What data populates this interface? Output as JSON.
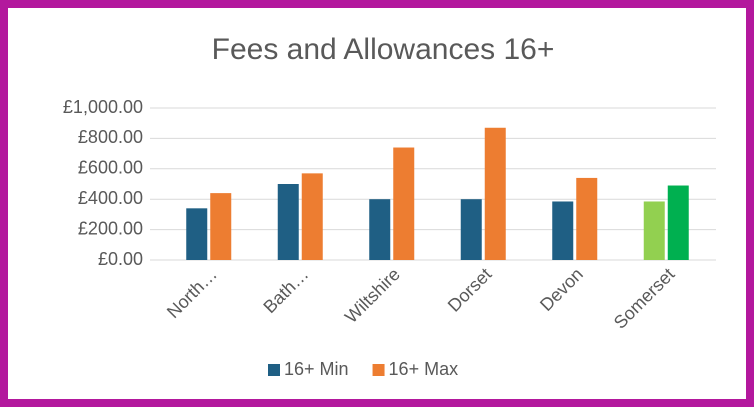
{
  "chart_data": {
    "type": "bar",
    "title": "Fees and Allowances 16+",
    "categories": [
      "North…",
      "Bath…",
      "Wiltshire",
      "Dorset",
      "Devon",
      "Somerset"
    ],
    "series": [
      {
        "name": "16+ Min",
        "color": "#1f5f84",
        "colors": [
          "#1f5f84",
          "#1f5f84",
          "#1f5f84",
          "#1f5f84",
          "#1f5f84",
          "#92d050"
        ],
        "values": [
          340,
          500,
          400,
          400,
          385,
          385
        ]
      },
      {
        "name": "16+ Max",
        "color": "#ed7d31",
        "colors": [
          "#ed7d31",
          "#ed7d31",
          "#ed7d31",
          "#ed7d31",
          "#ed7d31",
          "#00b050"
        ],
        "values": [
          440,
          570,
          740,
          870,
          540,
          490
        ]
      }
    ],
    "ylim": [
      0,
      1000
    ],
    "yticks": [
      {
        "value": 0,
        "label": "£0.00"
      },
      {
        "value": 200,
        "label": "£200.00"
      },
      {
        "value": 400,
        "label": "£400.00"
      },
      {
        "value": 600,
        "label": "£600.00"
      },
      {
        "value": 800,
        "label": "£800.00"
      },
      {
        "value": 1000,
        "label": "£1,000.00"
      }
    ],
    "grid": true,
    "legend": "bottom"
  }
}
